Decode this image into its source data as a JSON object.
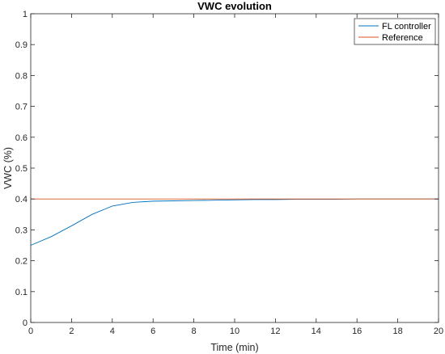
{
  "chart_data": {
    "type": "line",
    "title": "VWC evolution",
    "xlabel": "Time (min)",
    "ylabel": "VWC (%)",
    "xlim": [
      0,
      20
    ],
    "ylim": [
      0,
      1
    ],
    "x_ticks": [
      "0",
      "2",
      "4",
      "6",
      "8",
      "10",
      "12",
      "14",
      "16",
      "18",
      "20"
    ],
    "y_ticks": [
      "0",
      "0.1",
      "0.2",
      "0.3",
      "0.4",
      "0.5",
      "0.6",
      "0.7",
      "0.8",
      "0.9",
      "1"
    ],
    "grid": false,
    "legend_position": "top-right",
    "series": [
      {
        "name": "FL controller",
        "color": "#0072BD",
        "x": [
          0,
          1,
          2,
          3,
          4,
          5,
          6,
          7,
          8,
          9,
          10,
          11,
          12,
          13,
          14,
          15,
          16,
          17,
          18,
          19,
          20
        ],
        "y": [
          0.25,
          0.278,
          0.313,
          0.35,
          0.377,
          0.389,
          0.393,
          0.394,
          0.395,
          0.396,
          0.397,
          0.398,
          0.398,
          0.399,
          0.399,
          0.399,
          0.4,
          0.4,
          0.4,
          0.4,
          0.4
        ]
      },
      {
        "name": "Reference",
        "color": "#D95319",
        "x": [
          0,
          20
        ],
        "y": [
          0.4,
          0.4
        ]
      }
    ]
  }
}
